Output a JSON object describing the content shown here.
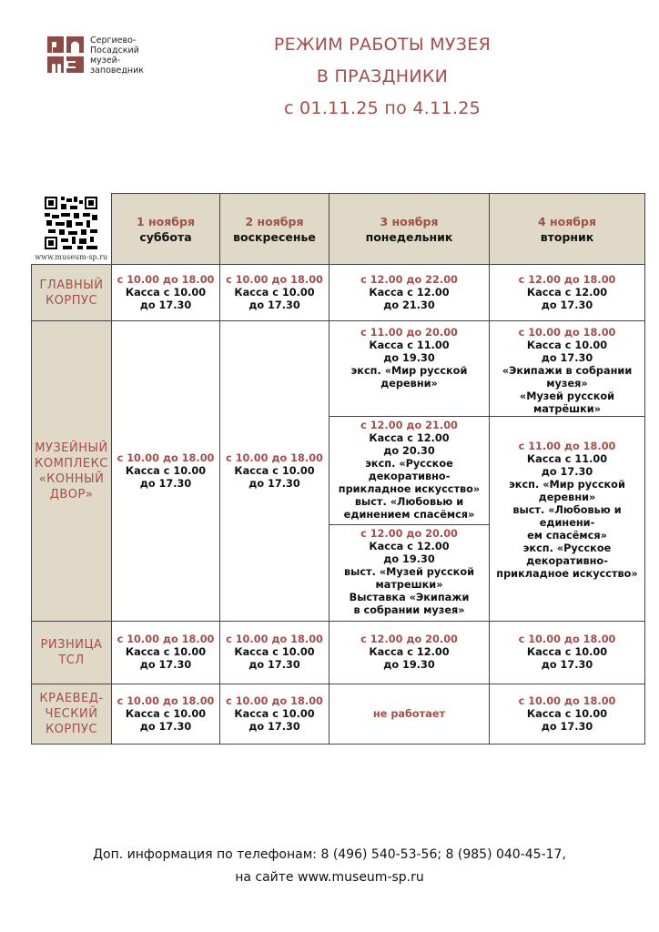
{
  "logo": {
    "text": [
      "Сергиево-",
      "Посадский",
      "музей-",
      "заповедник"
    ],
    "color": "#8e4b44"
  },
  "title": {
    "line1": "РЕЖИМ РАБОТЫ МУЗЕЯ",
    "line2": "В ПРАЗДНИКИ",
    "line3": "с 01.11.25 по 4.11.25"
  },
  "qr": {
    "icon": "qr-code-icon",
    "url": "www.museum-sp.ru"
  },
  "colors": {
    "accent": "#a34e48",
    "header_bg": "#e1d9c7"
  },
  "days": [
    {
      "date": "1 ноября",
      "weekday": "суббота"
    },
    {
      "date": "2 ноября",
      "weekday": "воскресенье"
    },
    {
      "date": "3 ноября",
      "weekday": "понедельник"
    },
    {
      "date": "4 ноября",
      "weekday": "вторник"
    }
  ],
  "rows": {
    "glavny": {
      "name": [
        "ГЛАВНЫЙ",
        "КОРПУС"
      ],
      "cells": [
        {
          "hours": "с 10.00 до 18.00",
          "lines": [
            "Касса с 10.00",
            "до 17.30"
          ]
        },
        {
          "hours": "с 10.00 до 18.00",
          "lines": [
            "Касса с 10.00",
            "до 17.30"
          ]
        },
        {
          "hours": "с 12.00 до 22.00",
          "lines": [
            "Касса с 12.00",
            "до 21.30"
          ]
        },
        {
          "hours": "с 12.00 до 18.00",
          "lines": [
            "Касса с 12.00",
            "до 17.30"
          ]
        }
      ]
    },
    "konny": {
      "name": [
        "МУЗЕЙНЫЙ",
        "КОМПЛЕКС",
        "«КОННЫЙ",
        "ДВОР»"
      ],
      "d1": {
        "hours": "с 10.00 до 18.00",
        "lines": [
          "Касса с 10.00",
          "до 17.30"
        ]
      },
      "d2": {
        "hours": "с 10.00 до 18.00",
        "lines": [
          "Касса с 10.00",
          "до 17.30"
        ]
      },
      "d3": [
        {
          "hours": "с 11.00 до 20.00",
          "lines": [
            "Касса с 11.00",
            "до 19.30",
            "эксп. «Мир русской",
            "деревни»"
          ]
        },
        {
          "hours": "с 12.00 до 21.00",
          "lines": [
            "Касса с 12.00",
            "до 20.30",
            "эксп. «Русское",
            "декоративно-",
            "прикладное искусство»",
            "выст. «Любовью и",
            "единением спасёмся»"
          ]
        },
        {
          "hours": "с 12.00 до 20.00",
          "lines": [
            "Касса с 12.00",
            "до 19.30",
            "выст. «Музей русской",
            "матрешки»",
            "Выставка «Экипажи",
            "в собрании музея»"
          ]
        }
      ],
      "d4": [
        {
          "hours": "с 10.00 до 18.00",
          "lines": [
            "Касса с 10.00",
            "до 17.30",
            "«Экипажи в собрании",
            "музея»",
            "«Музей русской",
            "матрёшки»"
          ]
        },
        {
          "hours": "с 11.00 до 18.00",
          "lines": [
            "Касса с 11.00",
            "до 17.30",
            "эксп. «Мир русской",
            "деревни»",
            "выст. «Любовью и единени-",
            "ем спасёмся»",
            "эксп. «Русское",
            "декоративно-",
            "прикладное искусство»"
          ]
        }
      ]
    },
    "riznica": {
      "name": [
        "РИЗНИЦА",
        "ТСЛ"
      ],
      "cells": [
        {
          "hours": "с 10.00 до 18.00",
          "lines": [
            "Касса с 10.00",
            "до 17.30"
          ]
        },
        {
          "hours": "с 10.00 до 18.00",
          "lines": [
            "Касса с 10.00",
            "до 17.30"
          ]
        },
        {
          "hours": "с 12.00 до 20.00",
          "lines": [
            "Касса с 12.00",
            "до 19.30"
          ]
        },
        {
          "hours": "с 10.00 до 18.00",
          "lines": [
            "Касса с 10.00",
            "до 17.30"
          ]
        }
      ]
    },
    "kraeved": {
      "name": [
        "КРАЕВЕД-",
        "ЧЕСКИЙ",
        "КОРПУС"
      ],
      "cells": [
        {
          "hours": "с 10.00 до 18.00",
          "lines": [
            "Касса с 10.00",
            "до 17.30"
          ]
        },
        {
          "hours": "с 10.00 до 18.00",
          "lines": [
            "Касса с 10.00",
            "до 17.30"
          ]
        },
        {
          "hours": "не работает",
          "lines": []
        },
        {
          "hours": "с 10.00 до 18.00",
          "lines": [
            "Касса с 10.00",
            "до 17.30"
          ]
        }
      ]
    }
  },
  "footer": {
    "line1": "Доп. информация по телефонам: 8 (496) 540-53-56; 8 (985) 040-45-17,",
    "line2": "на сайте www.museum-sp.ru"
  }
}
